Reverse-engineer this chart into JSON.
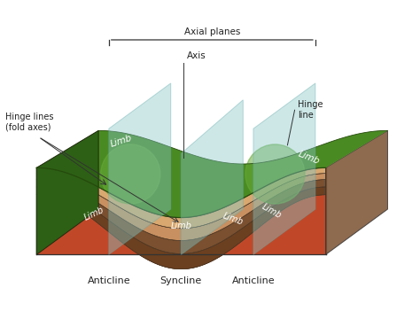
{
  "bg_color": "#ffffff",
  "labels": {
    "axial_planes": "Axial planes",
    "axis": "Axis",
    "hinge_lines": "Hinge lines\n(fold axes)",
    "hinge_line": "Hinge\nline",
    "anticline1": "Anticline",
    "syncline": "Syncline",
    "anticline2": "Anticline"
  },
  "colors": {
    "green_mid": "#4a8a22",
    "green_light": "#68aa38",
    "green_dark": "#2d6015",
    "green_side": "#3a7018",
    "brown_dark": "#6b4020",
    "brown_mid": "#7a5030",
    "tan": "#c89060",
    "tan_light": "#d8a870",
    "orange_red": "#c04828",
    "gray_plane": "#88c8c8",
    "line_color": "#333333",
    "text_color": "#222222"
  }
}
